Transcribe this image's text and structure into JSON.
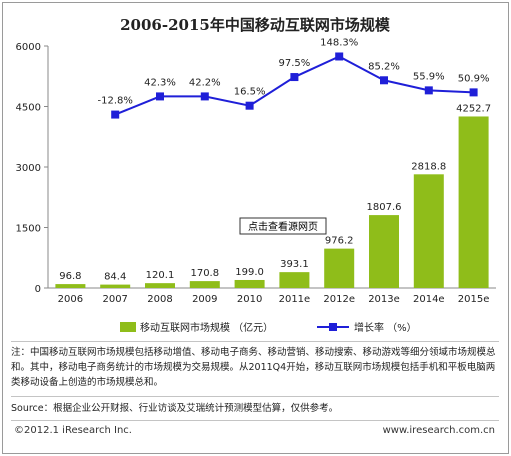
{
  "chart_data": {
    "type": "bar",
    "title": "2006-2015年中国移动互联网市场规模",
    "categories": [
      "2006",
      "2007",
      "2008",
      "2009",
      "2010",
      "2011e",
      "2012e",
      "2013e",
      "2014e",
      "2015e"
    ],
    "ylim": [
      0,
      6000
    ],
    "yticks": [
      0,
      1500,
      3000,
      4500,
      6000
    ],
    "series": [
      {
        "name": "移动互联网市场规模 （亿元）",
        "type": "bar",
        "color": "#8fbd1a",
        "values": [
          96.8,
          84.4,
          120.1,
          170.8,
          199.0,
          393.1,
          976.2,
          1807.6,
          2818.8,
          4252.7
        ],
        "labels": [
          "96.8",
          "84.4",
          "120.1",
          "170.8",
          "199.0",
          "393.1",
          "976.2",
          "1807.6",
          "2818.8",
          "4252.7"
        ]
      },
      {
        "name": "增长率 （%）",
        "type": "line",
        "color": "#1f1fd8",
        "values": [
          null,
          -12.8,
          42.3,
          42.2,
          16.5,
          97.5,
          148.3,
          85.2,
          55.9,
          50.9
        ],
        "labels": [
          "",
          "-12.8%",
          "42.3%",
          "42.2%",
          "16.5%",
          "97.5%",
          "148.3%",
          "85.2%",
          "55.9%",
          "50.9%"
        ],
        "plotted_on_left_axis_as": [
          null,
          4300,
          4750,
          4750,
          4520,
          5230,
          5740,
          5150,
          4900,
          4850
        ]
      }
    ],
    "legend_placement": "bottom",
    "grid": false
  },
  "overlay_button": "点击查看源网页",
  "note": "注：中国移动互联网市场规模包括移动增值、移动电子商务、移动营销、移动搜索、移动游戏等细分领域市场规模总和。其中，移动电子商务统计的市场规模为交易规模。从2011Q4开始，移动互联网市场规模包括手机和平板电脑两类移动设备上创造的市场规模总和。",
  "source": "Source：根据企业公开财报、行业访谈及艾瑞统计预测模型估算，仅供参考。",
  "footer": {
    "copyright": "©2012.1 iResearch Inc.",
    "website": "www.iresearch.com.cn"
  }
}
